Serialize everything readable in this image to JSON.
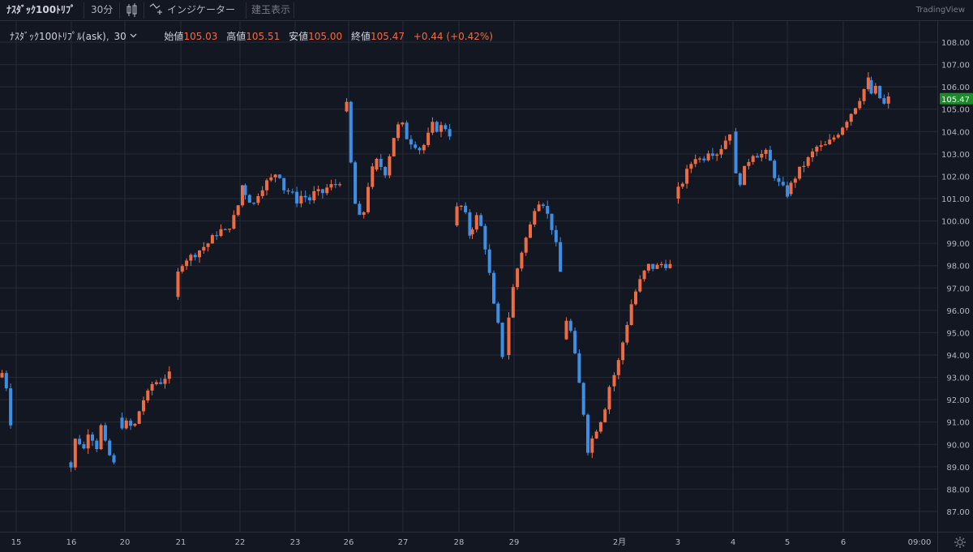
{
  "toolbar": {
    "symbol": "ﾅｽﾀﾞｯｸ100ﾄﾘﾌﾟ",
    "interval": "30分",
    "indicators_label": "インジケーター",
    "positions_label": "建玉表示",
    "brand": "TradingView"
  },
  "legend": {
    "name": "ﾅｽﾀﾞｯｸ100ﾄﾘﾌﾟﾙ(ask)",
    "interval": "30",
    "open_label": "始値",
    "open_value": "105.03",
    "high_label": "高値",
    "high_value": "105.51",
    "low_label": "安値",
    "low_value": "105.00",
    "close_label": "終値",
    "close_value": "105.47",
    "change": "+0.44 (+0.42%)"
  },
  "colors": {
    "background": "#131722",
    "grid": "#262b3a",
    "up": "#ef6c43",
    "down": "#3d8fe6",
    "last_price_badge": "#1b8a28",
    "axis_text": "#b2b5be"
  },
  "chart_data": {
    "type": "candlestick",
    "y_axis_ticks": [
      "87.00",
      "88.00",
      "89.00",
      "90.00",
      "91.00",
      "92.00",
      "93.00",
      "94.00",
      "95.00",
      "96.00",
      "97.00",
      "98.00",
      "99.00",
      "100.00",
      "101.00",
      "102.00",
      "103.00",
      "104.00",
      "105.00",
      "106.00",
      "107.00",
      "108.00"
    ],
    "ylim": [
      86.2,
      108.7
    ],
    "x_axis_ticks": [
      "15",
      "16",
      "20",
      "21",
      "22",
      "23",
      "26",
      "27",
      "28",
      "29",
      "2月",
      "3",
      "4",
      "5",
      "6",
      "09:00"
    ],
    "last_price": "105.47",
    "grid": true,
    "segments": [
      {
        "from": 0,
        "to": 15,
        "levels": [
          93.0,
          92.8,
          93.5,
          93.3,
          93.7,
          93.2,
          92.9,
          93.0,
          92.5,
          92.3,
          92.6,
          92.2,
          92.0,
          92.3,
          91.5,
          91.0
        ]
      },
      {
        "from": 85,
        "to": 145,
        "levels": [
          89.2,
          89.0,
          90.2,
          90.1,
          89.8,
          90.6,
          90.3,
          89.9,
          90.8,
          90.0,
          89.5,
          89.1
        ]
      },
      {
        "from": 148,
        "to": 214,
        "levels": [
          91.2,
          90.8,
          91.0,
          90.6,
          91.4,
          92.0,
          92.3,
          92.9,
          92.7,
          93.0,
          93.1
        ]
      },
      {
        "from": 217,
        "to": 300,
        "levels": [
          96.6,
          98.0,
          98.3,
          98.4,
          98.6,
          98.8,
          99.0,
          99.3,
          99.6,
          99.5,
          99.9,
          100.4,
          101.6
        ]
      },
      {
        "from": 300,
        "to": 420,
        "levels": [
          101.6,
          101.1,
          100.7,
          101.4,
          101.7,
          101.9,
          102.3,
          101.4,
          101.3,
          100.9,
          101.2,
          100.9,
          101.3,
          101.2,
          101.5,
          101.6,
          101.8
        ]
      },
      {
        "from": 425,
        "to": 462,
        "levels": [
          104.9,
          105.2,
          101.5,
          100.2,
          100.0,
          101.5,
          102.3
        ]
      },
      {
        "from": 462,
        "to": 556,
        "levels": [
          102.3,
          102.8,
          102.0,
          103.1,
          104.2,
          104.3,
          103.6,
          103.5,
          103.2,
          103.5,
          104.3,
          104.1,
          104.3,
          103.9
        ]
      },
      {
        "from": 561,
        "to": 580,
        "levels": [
          99.8,
          100.8,
          100.5,
          99.4
        ]
      },
      {
        "from": 580,
        "to": 625,
        "levels": [
          99.4,
          99.8,
          100.3,
          99.4,
          98.3,
          96.4,
          95.5,
          94.0
        ]
      },
      {
        "from": 625,
        "to": 692,
        "levels": [
          94.0,
          96.5,
          97.8,
          98.9,
          99.6,
          100.8,
          101.0,
          100.2,
          99.4,
          97.7
        ]
      },
      {
        "from": 696,
        "to": 755,
        "levels": [
          94.7,
          95.8,
          94.6,
          93.1,
          91.6,
          89.6,
          90.5,
          90.9,
          91.5,
          92.6
        ]
      },
      {
        "from": 755,
        "to": 828,
        "levels": [
          92.6,
          93.5,
          95.0,
          96.5,
          97.3,
          98.0,
          97.9,
          98.1,
          98.0
        ]
      },
      {
        "from": 834,
        "to": 905,
        "levels": [
          101.0,
          101.6,
          102.3,
          102.9,
          102.7,
          103.2,
          103.0,
          103.4,
          104.0
        ]
      },
      {
        "from": 905,
        "to": 973,
        "levels": [
          104.0,
          101.4,
          102.1,
          102.7,
          103.1,
          102.9,
          103.1,
          102.6,
          101.8,
          101.5,
          101.2
        ]
      },
      {
        "from": 973,
        "to": 1072,
        "levels": [
          101.2,
          101.9,
          102.4,
          102.8,
          103.3,
          103.3,
          103.6,
          104.0,
          104.5,
          105.0,
          105.6,
          106.3
        ]
      },
      {
        "from": 1072,
        "to": 1097,
        "levels": [
          106.3,
          105.7,
          105.9,
          105.5,
          105.2,
          105.47
        ]
      }
    ]
  }
}
